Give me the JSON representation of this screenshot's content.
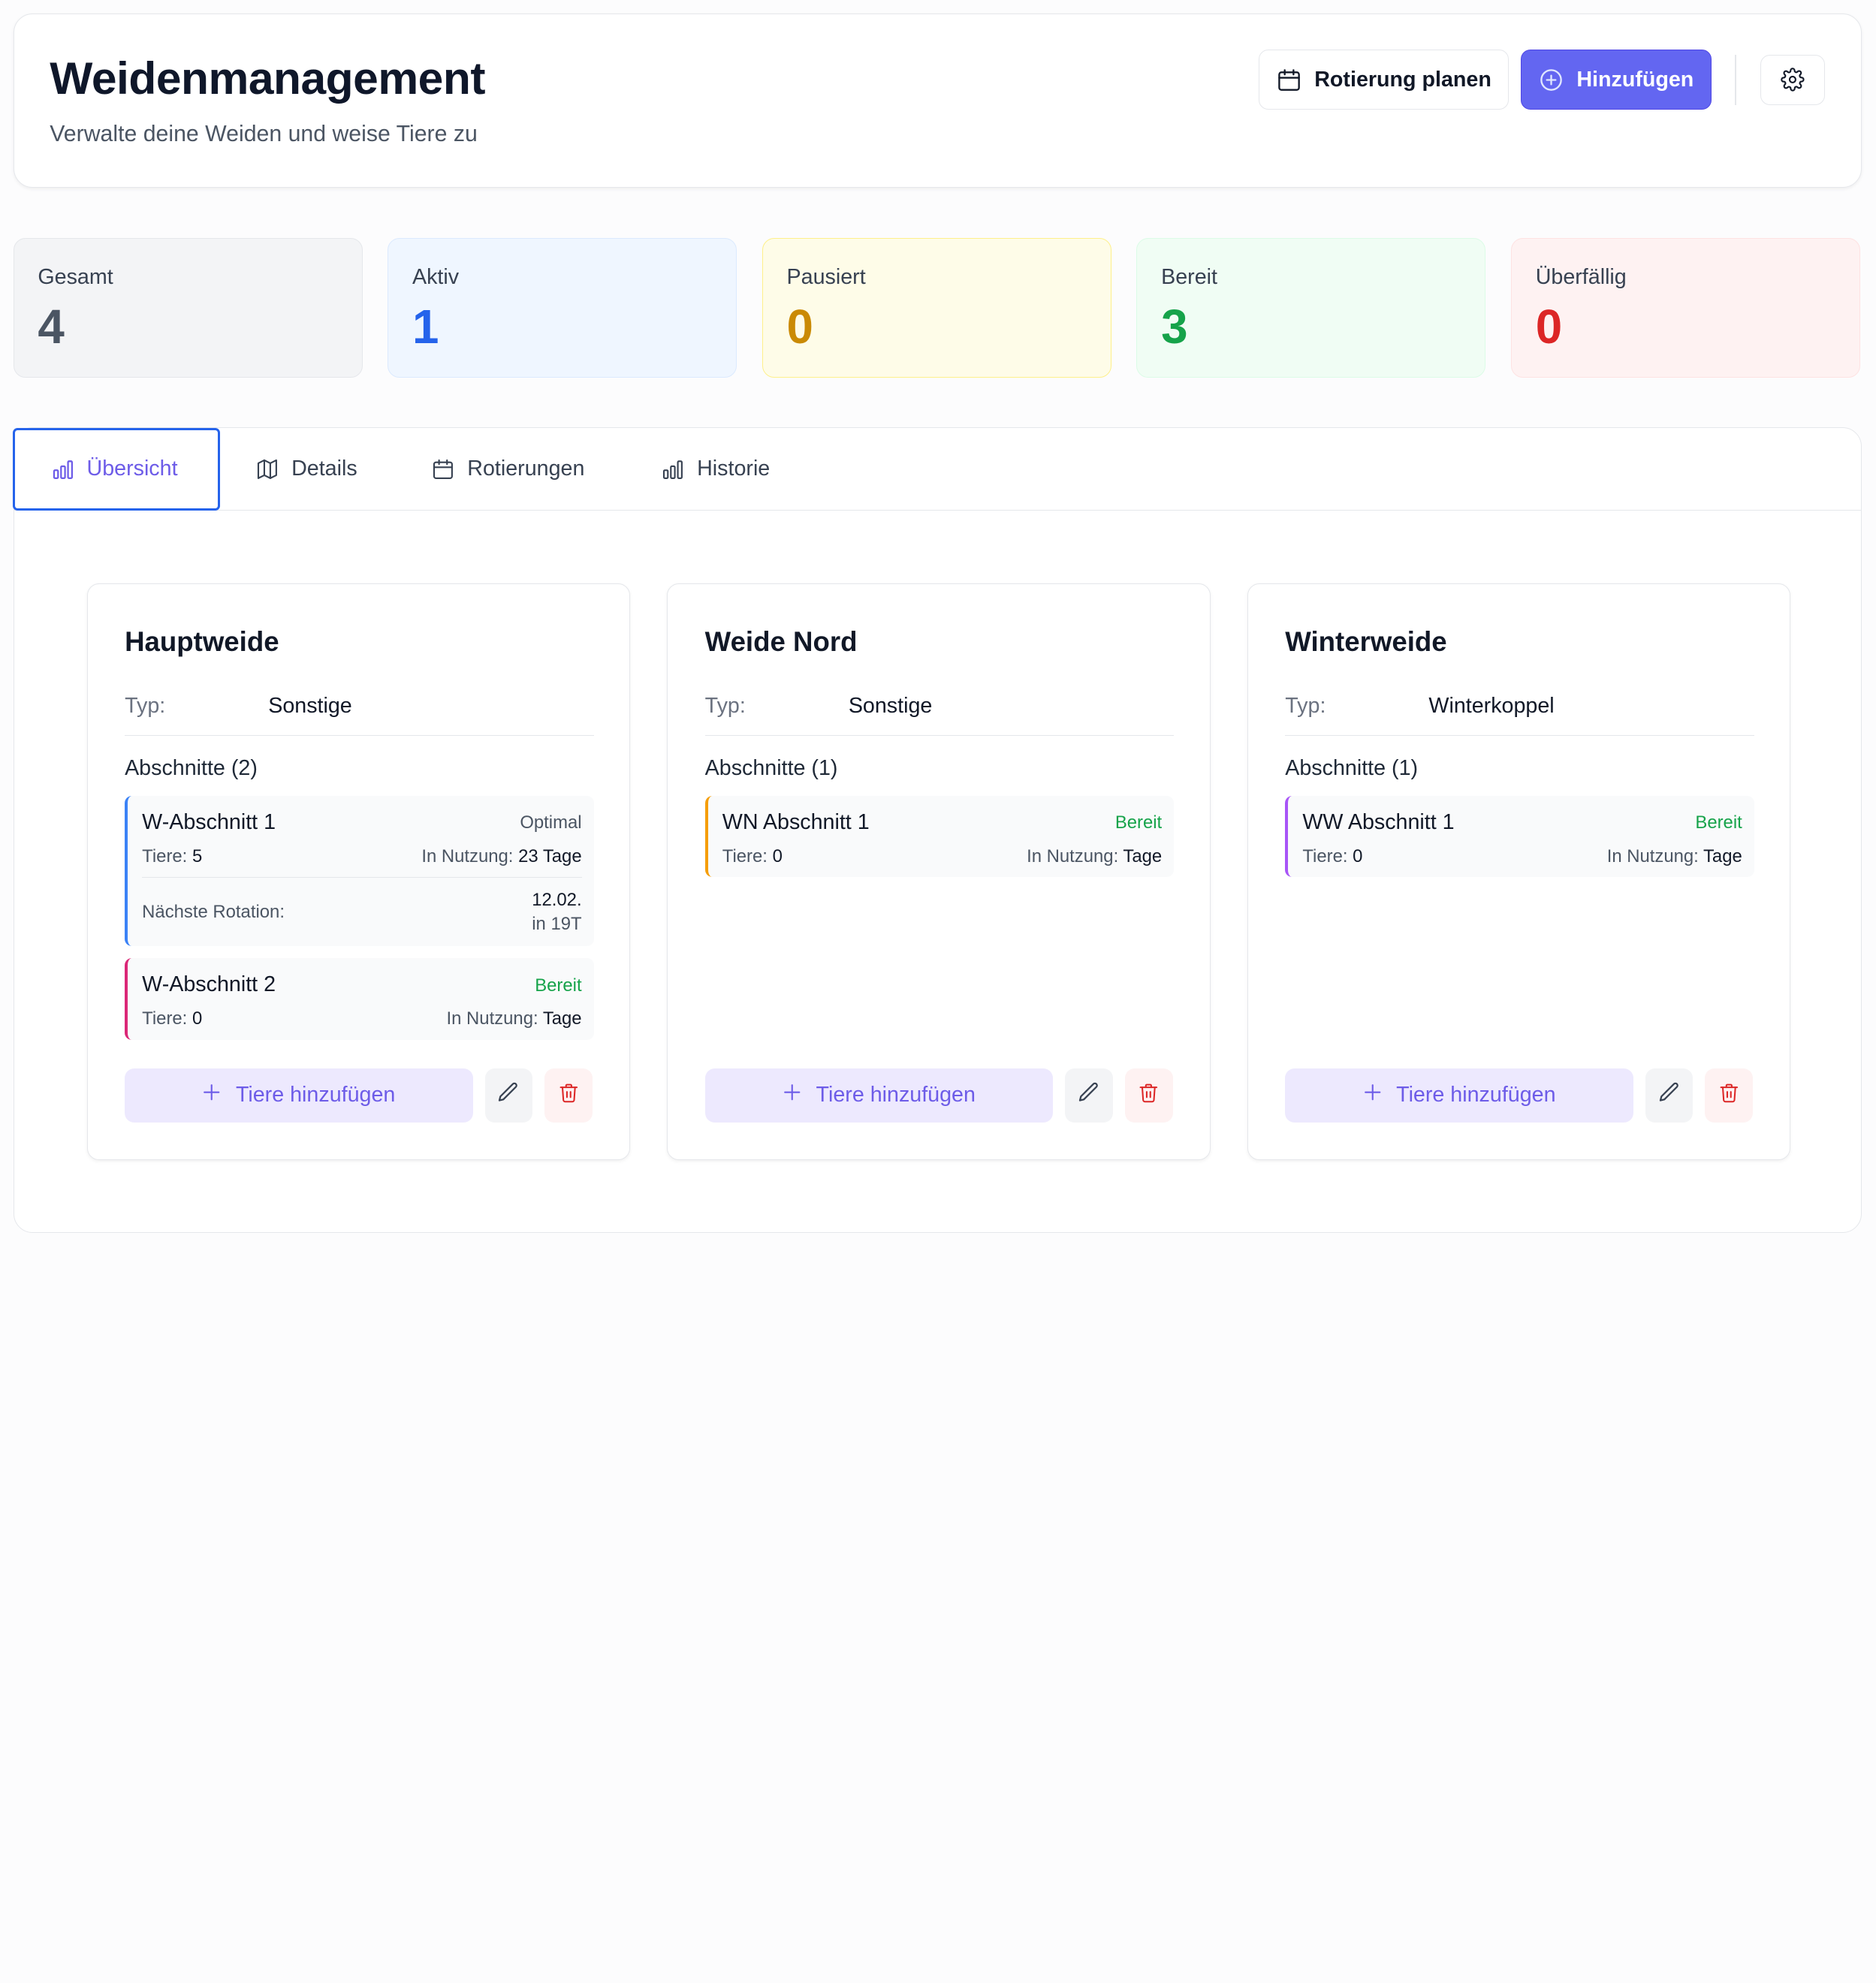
{
  "header": {
    "title": "Weidenmanagement",
    "subtitle": "Verwalte deine Weiden und weise Tiere zu",
    "plan_rotation_label": "Rotierung planen",
    "add_label": "Hinzufügen"
  },
  "stats": [
    {
      "label": "Gesamt",
      "value": "4",
      "color": "#4b5563"
    },
    {
      "label": "Aktiv",
      "value": "1",
      "color": "#2563eb"
    },
    {
      "label": "Pausiert",
      "value": "0",
      "color": "#ca8a04"
    },
    {
      "label": "Bereit",
      "value": "3",
      "color": "#16a34a"
    },
    {
      "label": "Überfällig",
      "value": "0",
      "color": "#dc2626"
    }
  ],
  "tabs": [
    {
      "label": "Übersicht",
      "active": true
    },
    {
      "label": "Details",
      "active": false
    },
    {
      "label": "Rotierungen",
      "active": false
    },
    {
      "label": "Historie",
      "active": false
    }
  ],
  "labels": {
    "typ": "Typ:",
    "tiere": "Tiere:",
    "in_nutzung": "In Nutzung:",
    "next_rotation": "Nächste Rotation:",
    "add_animals": "Tiere hinzufügen"
  },
  "pastures": [
    {
      "name": "Hauptweide",
      "type": "Sonstige",
      "sections_heading": "Abschnitte (2)",
      "sections": [
        {
          "name": "W-Abschnitt 1",
          "status": "Optimal",
          "animals": "5",
          "usage": "23 Tage",
          "border_color": "#3b82f6",
          "next_rotation_date": "12.02.",
          "next_rotation_in": "in 19T"
        },
        {
          "name": "W-Abschnitt 2",
          "status": "Bereit",
          "animals": "0",
          "usage": "Tage",
          "border_color": "#db2777"
        }
      ]
    },
    {
      "name": "Weide Nord",
      "type": "Sonstige",
      "sections_heading": "Abschnitte (1)",
      "sections": [
        {
          "name": "WN Abschnitt 1",
          "status": "Bereit",
          "animals": "0",
          "usage": "Tage",
          "border_color": "#f59e0b"
        }
      ]
    },
    {
      "name": "Winterweide",
      "type": "Winterkoppel",
      "sections_heading": "Abschnitte (1)",
      "sections": [
        {
          "name": "WW Abschnitt 1",
          "status": "Bereit",
          "animals": "0",
          "usage": "Tage",
          "border_color": "#a855f7"
        }
      ]
    }
  ]
}
